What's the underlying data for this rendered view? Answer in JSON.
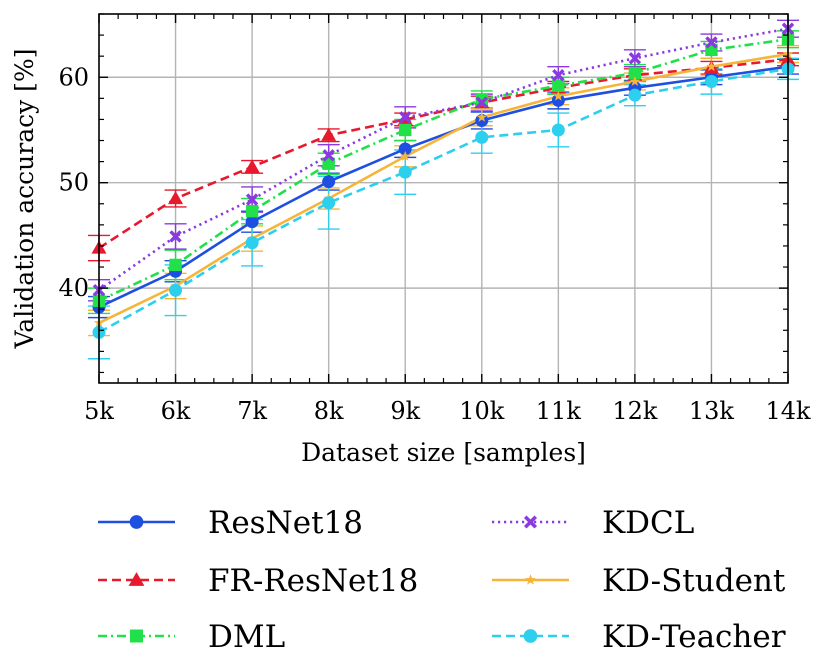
{
  "chart_data": {
    "type": "line",
    "title": "",
    "xlabel": "Dataset size [samples]",
    "ylabel": "Validation accuracy [%]",
    "x": [
      5,
      6,
      7,
      8,
      9,
      10,
      11,
      12,
      13,
      14
    ],
    "xtick_labels": [
      "5k",
      "6k",
      "7k",
      "8k",
      "9k",
      "10k",
      "11k",
      "12k",
      "13k",
      "14k"
    ],
    "xlim": [
      5,
      14
    ],
    "ylim": [
      31,
      66
    ],
    "yticks": [
      40,
      50,
      60
    ],
    "ytick_labels": [
      "40",
      "50",
      "60"
    ],
    "grid": true,
    "legend_position": "bottom",
    "series": [
      {
        "name": "ResNet18",
        "color": "#1f4fe0",
        "dash": "solid",
        "marker": "circle",
        "values": [
          38.2,
          41.6,
          46.3,
          50.1,
          53.2,
          55.9,
          57.8,
          59.0,
          60.0,
          61.0
        ],
        "errors": [
          1.0,
          1.0,
          1.0,
          0.8,
          0.8,
          0.8,
          0.8,
          0.7,
          0.7,
          0.7
        ]
      },
      {
        "name": "FR-ResNet18",
        "color": "#e8192c",
        "dash": "dashed",
        "marker": "triangle",
        "values": [
          43.8,
          48.5,
          51.5,
          54.5,
          56.0,
          57.6,
          59.0,
          60.2,
          60.9,
          61.7
        ],
        "errors": [
          1.2,
          0.8,
          0.6,
          0.6,
          0.6,
          0.6,
          0.6,
          0.6,
          0.6,
          0.6
        ]
      },
      {
        "name": "DML",
        "color": "#22e04a",
        "dash": "dashdot",
        "marker": "square",
        "values": [
          38.8,
          42.2,
          47.3,
          51.8,
          55.0,
          57.9,
          59.2,
          60.4,
          62.6,
          63.6
        ],
        "errors": [
          1.2,
          1.4,
          1.2,
          1.0,
          1.0,
          0.8,
          0.8,
          0.8,
          0.8,
          0.8
        ]
      },
      {
        "name": "KDCL",
        "color": "#8a3ae0",
        "dash": "dotted",
        "marker": "x",
        "values": [
          39.8,
          44.9,
          48.4,
          52.6,
          56.2,
          57.6,
          60.2,
          61.8,
          63.3,
          64.6
        ],
        "errors": [
          1.0,
          1.2,
          1.2,
          1.0,
          1.0,
          0.8,
          0.8,
          0.8,
          0.8,
          0.8
        ]
      },
      {
        "name": "KD-Student",
        "color": "#f6b53a",
        "dash": "solid",
        "marker": "star",
        "values": [
          36.7,
          40.2,
          44.7,
          48.5,
          52.5,
          56.2,
          58.2,
          59.6,
          61.0,
          62.2
        ],
        "errors": [
          1.2,
          1.2,
          1.2,
          1.0,
          1.0,
          0.8,
          0.8,
          0.8,
          0.8,
          0.8
        ]
      },
      {
        "name": "KD-Teacher",
        "color": "#2dcfef",
        "dash": "dashed",
        "marker": "circle",
        "values": [
          35.8,
          39.8,
          44.3,
          48.1,
          51.0,
          54.3,
          55.0,
          58.3,
          59.6,
          60.8
        ],
        "errors": [
          2.5,
          2.4,
          2.2,
          2.5,
          2.1,
          1.5,
          1.6,
          1.0,
          1.2,
          1.0
        ]
      }
    ]
  }
}
